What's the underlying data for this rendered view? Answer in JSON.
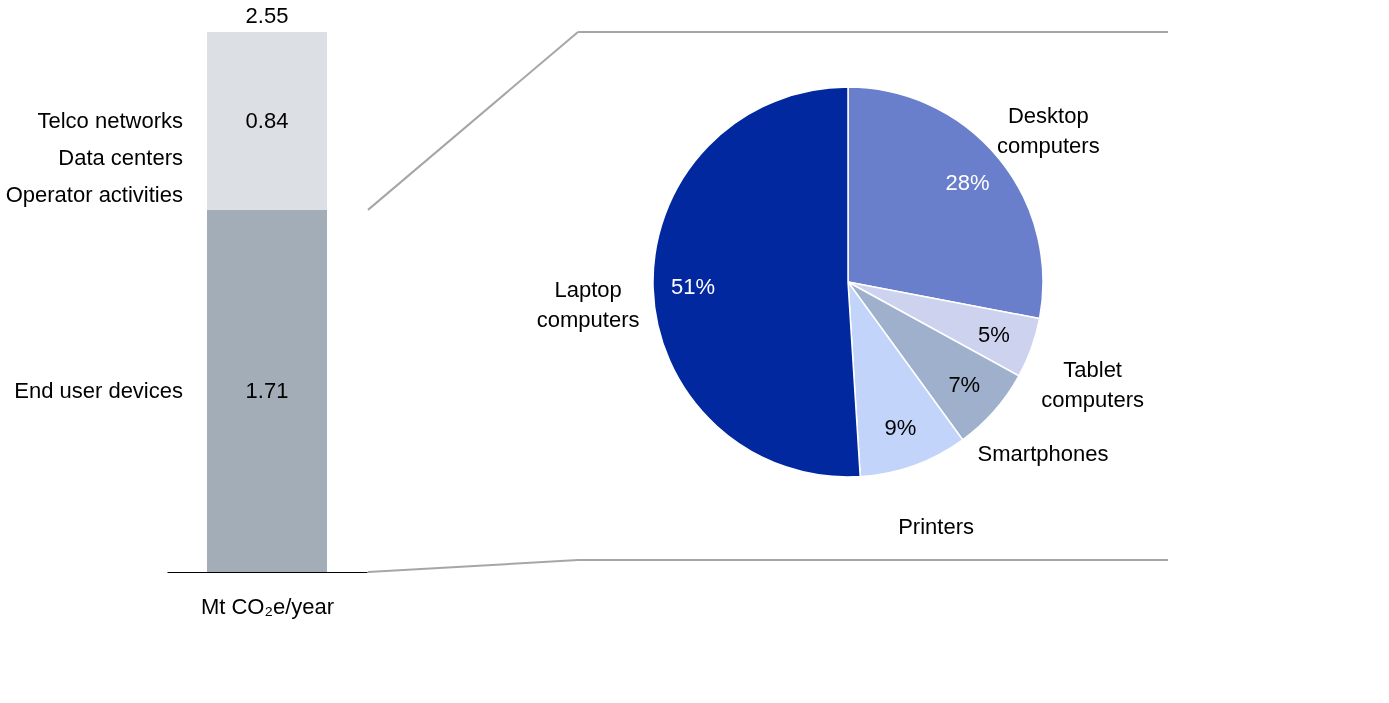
{
  "chart_data": [
    {
      "type": "bar",
      "stacked": true,
      "categories": [
        null
      ],
      "xlabel": "Mt CO₂e/year",
      "data_labels": true,
      "totals": [
        "2.55"
      ],
      "series": [
        {
          "name": "End user devices",
          "color": "#a3adb7",
          "values": [
            1.71
          ]
        },
        {
          "name": "Telco networks\nData centers\nOperator activities",
          "color": "#dcdfe3",
          "values": [
            0.84
          ]
        }
      ]
    },
    {
      "type": "pie",
      "categories": [
        "Desktop computers",
        "Tablet computers",
        "Smartphones",
        "Printers",
        "Laptop computers"
      ],
      "values": [
        28,
        5,
        7,
        9,
        51
      ],
      "colors": [
        "#6a7fcb",
        "#cdd3ee",
        "#9fb0cc",
        "#c2d4f9",
        "#0228a0"
      ],
      "value_labels": [
        "28%",
        "5%",
        "7%",
        "9%",
        "51%"
      ]
    }
  ]
}
